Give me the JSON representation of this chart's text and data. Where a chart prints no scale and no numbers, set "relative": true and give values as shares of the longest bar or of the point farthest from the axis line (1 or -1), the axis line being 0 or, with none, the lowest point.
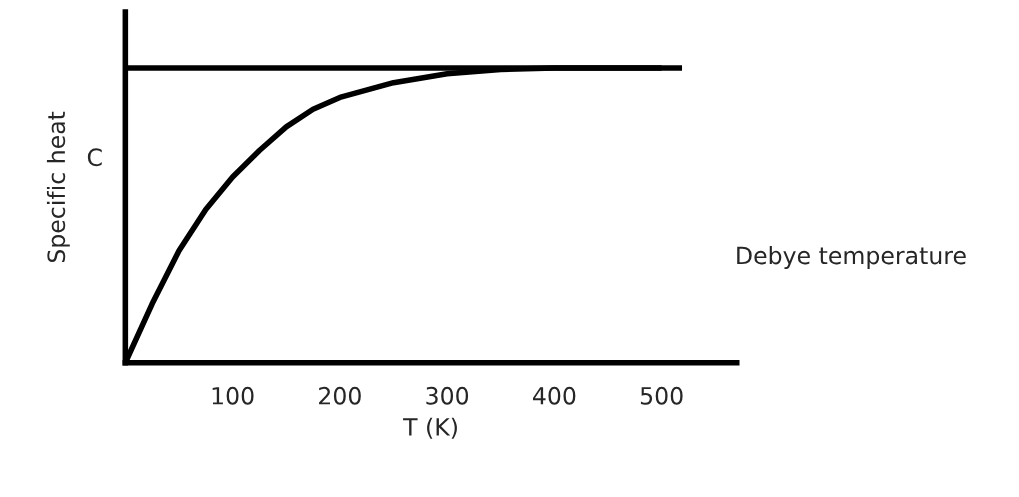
{
  "chart_data": {
    "type": "line",
    "relative": true,
    "xlabel": "T (K)",
    "ylabel": "Specific heat",
    "annotations": [
      "C",
      "Debye temperature"
    ],
    "xlim": [
      0,
      570
    ],
    "xticks": [
      100,
      200,
      300,
      400,
      500
    ],
    "series": [
      {
        "color": "#000000",
        "x": [
          0,
          519
        ],
        "values": [
          1,
          1
        ]
      },
      {
        "color": "#000000",
        "x": [
          0,
          25,
          50,
          75,
          100,
          125,
          150,
          175,
          200,
          250,
          300,
          350,
          400,
          450,
          500
        ],
        "values": [
          0,
          0.2,
          0.38,
          0.52,
          0.63,
          0.72,
          0.8,
          0.86,
          0.9,
          0.95,
          0.98,
          0.995,
          1,
          1,
          1
        ]
      }
    ],
    "grid": false,
    "legend": false,
    "line_style": "solid",
    "marker": "none"
  }
}
